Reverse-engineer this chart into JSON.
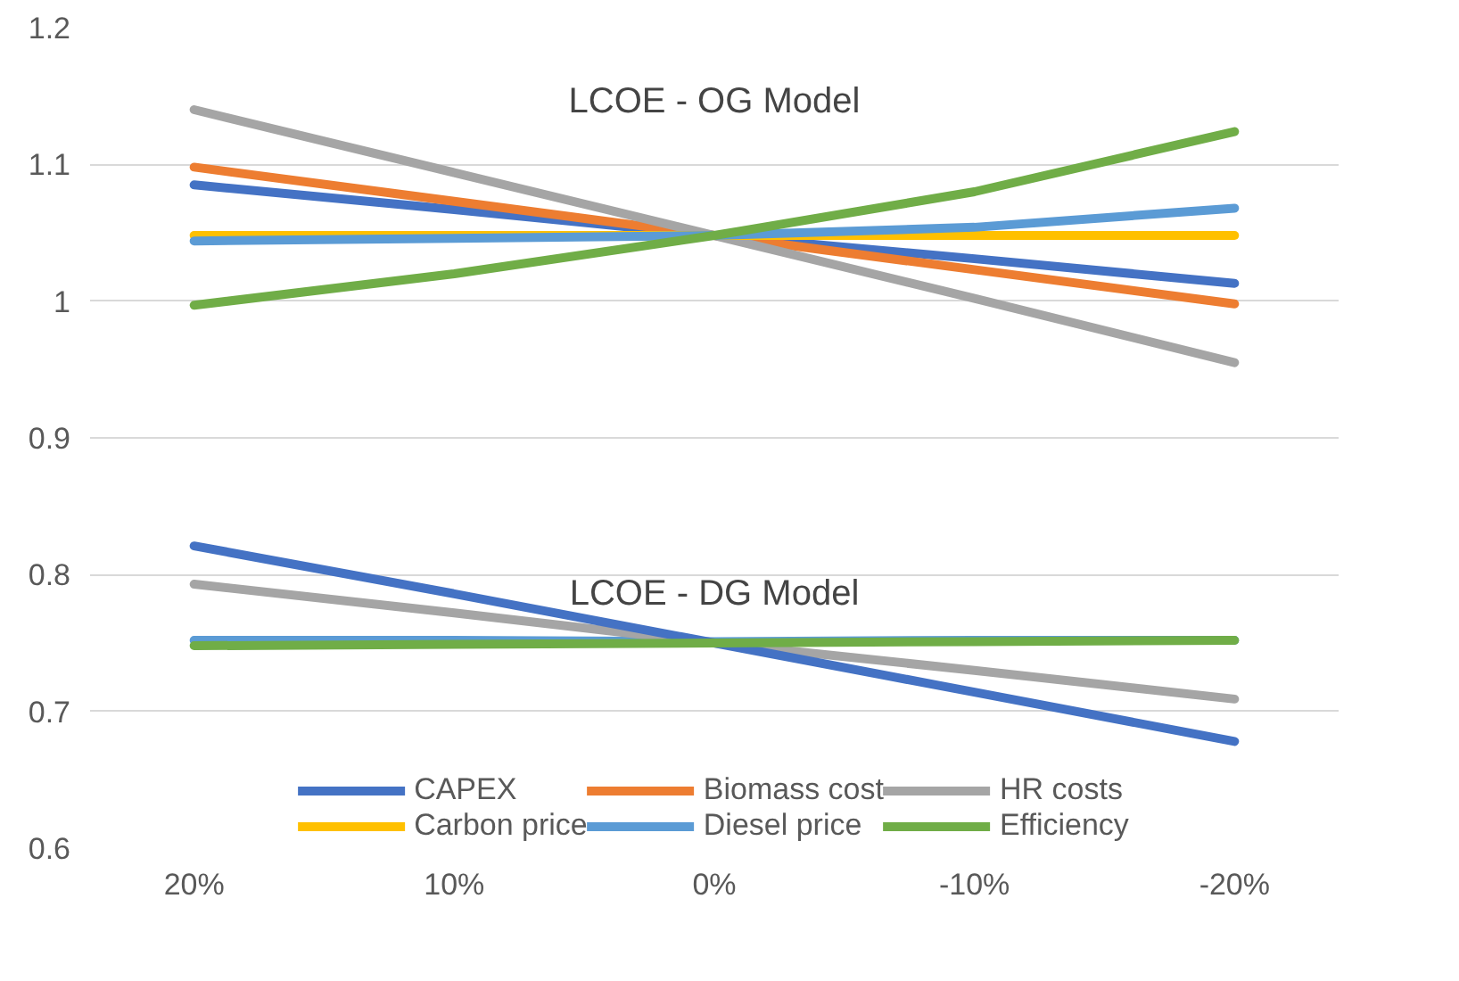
{
  "chart_data": {
    "type": "line",
    "categories": [
      "20%",
      "10%",
      "0%",
      "-10%",
      "-20%"
    ],
    "ylim": [
      0.6,
      1.2
    ],
    "yticks": [
      0.6,
      0.7,
      0.8,
      0.9,
      1,
      1.1,
      1.2
    ],
    "grid": "y",
    "legend": "bottom",
    "annotations": [
      "LCOE - OG Model",
      "LCOE - DG Model"
    ],
    "series": [
      {
        "name": "CAPEX",
        "color": "#4472c4",
        "values": [
          1.085,
          1.067,
          1.048,
          1.031,
          1.013
        ]
      },
      {
        "name": "Biomass cost",
        "color": "#ed7d31",
        "values": [
          1.098,
          1.073,
          1.048,
          1.023,
          0.998
        ]
      },
      {
        "name": "HR costs",
        "color": "#a5a5a5",
        "values": [
          1.14,
          1.094,
          1.048,
          1.002,
          0.955
        ]
      },
      {
        "name": "Carbon price",
        "color": "#ffc000",
        "values": [
          1.048,
          1.048,
          1.048,
          1.048,
          1.048
        ]
      },
      {
        "name": "Diesel price",
        "color": "#5b9bd5",
        "values": [
          1.044,
          1.046,
          1.048,
          1.054,
          1.068
        ]
      },
      {
        "name": "Efficiency",
        "color": "#70ad47",
        "values": [
          0.997,
          1.02,
          1.048,
          1.08,
          1.124
        ]
      },
      {
        "color": "#5b9bd5",
        "values": [
          0.752,
          0.752,
          0.751,
          0.752,
          0.752
        ]
      },
      {
        "color": "#a5a5a5",
        "values": [
          0.793,
          0.772,
          0.75,
          0.73,
          0.709
        ]
      },
      {
        "color": "#4472c4",
        "values": [
          0.821,
          0.786,
          0.75,
          0.714,
          0.678
        ]
      },
      {
        "color": "#70ad47",
        "values": [
          0.748,
          0.749,
          0.75,
          0.751,
          0.752
        ]
      }
    ]
  }
}
